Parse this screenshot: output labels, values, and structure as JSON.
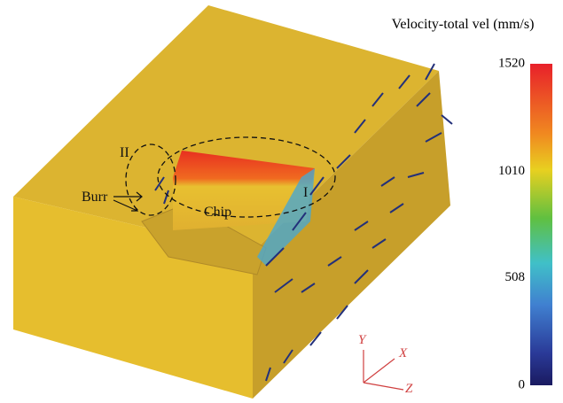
{
  "figure": {
    "colorbar": {
      "title": "Velocity-total vel (mm/s)",
      "min": 0,
      "max": 1520,
      "ticks": [
        1520,
        1010,
        508,
        0
      ]
    },
    "annotations": {
      "region_2": "II",
      "region_1": "I",
      "burr": "Burr",
      "chip": "Chip"
    },
    "axes": {
      "y": "Y",
      "x": "X",
      "z": "Z"
    }
  }
}
